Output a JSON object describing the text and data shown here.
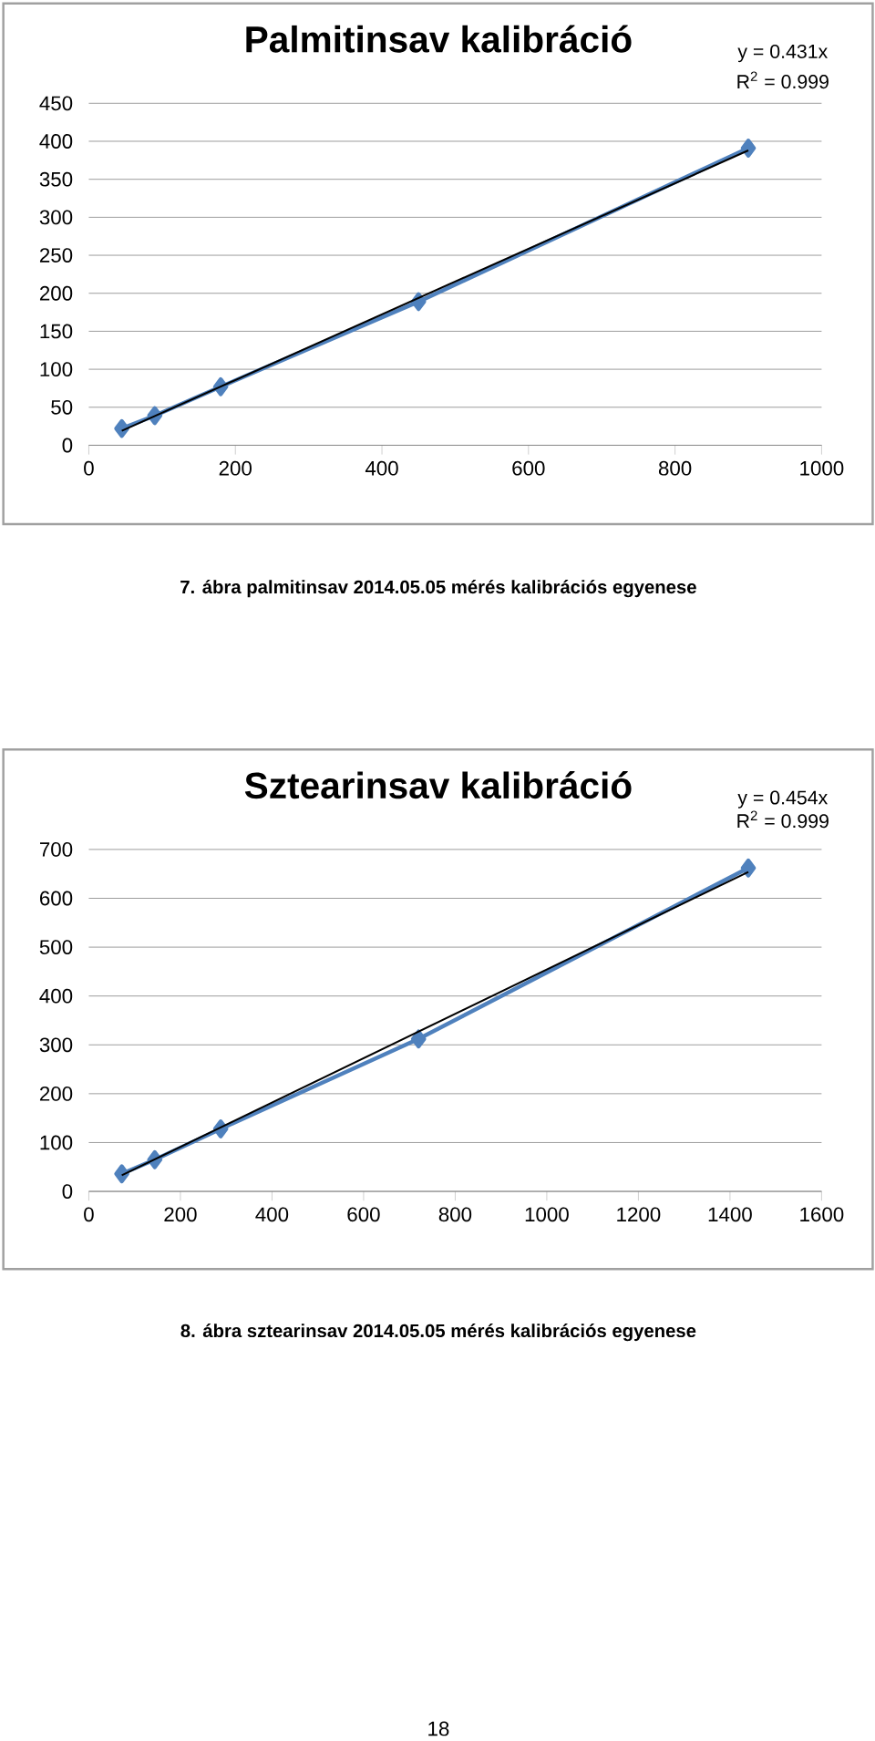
{
  "chart_data": [
    {
      "type": "line",
      "title": "Palmitinsav kalibráció",
      "xlim": [
        0,
        1000
      ],
      "ylim": [
        0,
        450
      ],
      "xticks": [
        0,
        200,
        400,
        600,
        800,
        1000
      ],
      "yticks": [
        0,
        50,
        100,
        150,
        200,
        250,
        300,
        350,
        400,
        450
      ],
      "grid": "y",
      "series": [
        {
          "color": "#4f81bd",
          "marker": "diamond",
          "x": [
            45,
            90,
            180,
            450,
            900
          ],
          "values": [
            22,
            39,
            77,
            189,
            391
          ]
        },
        {
          "color": "#000000",
          "marker": "none",
          "x": [
            45,
            900
          ],
          "values": [
            19,
            388
          ]
        }
      ],
      "annotations": [
        "y = 0.431x",
        "R$^{2}$ = 0.999",
        "7. ábra palmitinsav 2014.05.05 mérés kalibrációs egyenese"
      ]
    },
    {
      "type": "line",
      "title": "Sztearinsav kalibráció",
      "xlim": [
        0,
        1600
      ],
      "ylim": [
        0,
        700
      ],
      "xticks": [
        0,
        200,
        400,
        600,
        800,
        1000,
        1200,
        1400,
        1600
      ],
      "yticks": [
        0,
        100,
        200,
        300,
        400,
        500,
        600,
        700
      ],
      "grid": "y",
      "series": [
        {
          "color": "#4f81bd",
          "marker": "diamond",
          "x": [
            72,
            144,
            288,
            720,
            1440
          ],
          "values": [
            36,
            65,
            128,
            312,
            662
          ]
        },
        {
          "color": "#000000",
          "marker": "none",
          "x": [
            72,
            1440
          ],
          "values": [
            33,
            654
          ]
        }
      ],
      "annotations": [
        "y = 0.454x",
        "R$^{2}$ = 0.999",
        "8. ábra sztearinsav 2014.05.05 mérés kalibrációs egyenese",
        "18"
      ]
    }
  ]
}
